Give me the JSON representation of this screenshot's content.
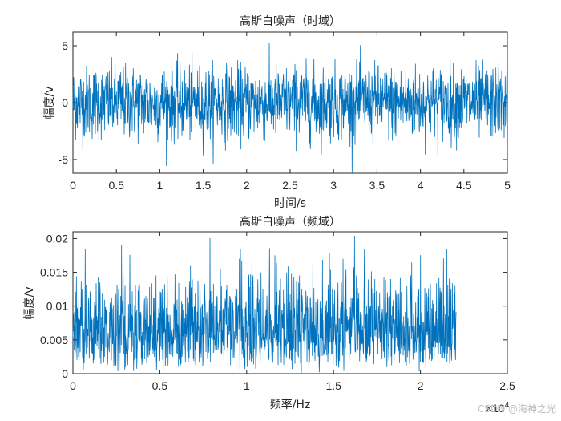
{
  "chart_data": [
    {
      "type": "line",
      "title": "高斯白噪声（时域）",
      "xlabel": "时间/s",
      "ylabel": "幅度/v",
      "xlim": [
        0,
        5
      ],
      "ylim": [
        -6.2,
        6.2
      ],
      "xticks": [
        0,
        0.5,
        1,
        1.5,
        2,
        2.5,
        3,
        3.5,
        4,
        4.5,
        5
      ],
      "xtick_labels": [
        "0",
        "0.5",
        "1",
        "1.5",
        "2",
        "2.5",
        "3",
        "3.5",
        "4",
        "4.5",
        "5"
      ],
      "yticks": [
        -5,
        0,
        5
      ],
      "ytick_labels": [
        "-5",
        "0",
        "5"
      ],
      "series": [
        {
          "color": "#0072BD",
          "distribution": "gaussian",
          "mean": 0,
          "std": 1.6,
          "x_range": [
            0,
            5
          ]
        }
      ]
    },
    {
      "type": "line",
      "title": "高斯白噪声（频域）",
      "xlabel": "频率/Hz",
      "ylabel": "幅度/v",
      "xlim": [
        0,
        25000
      ],
      "ylim": [
        0,
        0.021
      ],
      "xticks": [
        0,
        5000,
        10000,
        15000,
        20000,
        25000
      ],
      "xtick_labels": [
        "0",
        "0.5",
        "1",
        "1.5",
        "2",
        "2.5"
      ],
      "x_exponent_label": "×10",
      "x_exponent_power": "4",
      "yticks": [
        0,
        0.005,
        0.01,
        0.015,
        0.02
      ],
      "ytick_labels": [
        "0",
        "0.005",
        "0.01",
        "0.015",
        "0.02"
      ],
      "series": [
        {
          "color": "#0072BD",
          "distribution": "rayleigh",
          "mean_magnitude": 0.0068,
          "x_range": [
            0,
            22050
          ]
        }
      ]
    }
  ],
  "watermark": "CSDN @海神之光"
}
